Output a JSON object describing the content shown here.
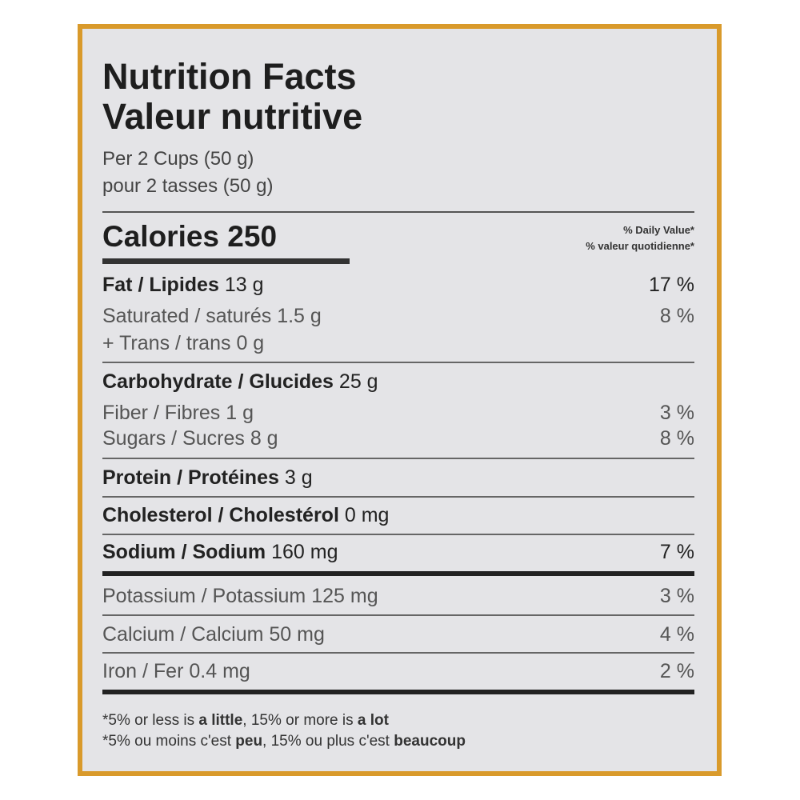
{
  "title": [
    "Nutrition Facts",
    "Valeur nutritive"
  ],
  "serving": [
    "Per 2 Cups (50 g)",
    "pour 2 tasses (50 g)"
  ],
  "calories": {
    "label": "Calories",
    "value": "250"
  },
  "daily_value_header": [
    "% Daily Value*",
    "% valeur quotidienne*"
  ],
  "rows": [
    {
      "name": "Fat / Lipides",
      "amount": "13 g",
      "dv": "17 %"
    },
    {
      "name": "Saturated / saturés",
      "amount": "1.5 g",
      "dv": "8 %"
    },
    {
      "name": "+ Trans / trans",
      "amount": "0 g"
    },
    {
      "name": "Carbohydrate / Glucides",
      "amount": "25 g"
    },
    {
      "name": "Fiber / Fibres",
      "amount": "1 g",
      "dv": "3 %"
    },
    {
      "name": "Sugars / Sucres",
      "amount": "8 g",
      "dv": "8 %"
    },
    {
      "name": "Protein / Protéines",
      "amount": "3 g"
    },
    {
      "name": "Cholesterol / Cholestérol",
      "amount": "0 mg"
    },
    {
      "name": "Sodium / Sodium",
      "amount": "160 mg",
      "dv": "7 %"
    },
    {
      "name": "Potassium / Potassium",
      "amount": "125 mg",
      "dv": "3 %"
    },
    {
      "name": "Calcium / Calcium",
      "amount": "50 mg",
      "dv": "4 %"
    },
    {
      "name": "Iron / Fer",
      "amount": "0.4 mg",
      "dv": "2 %"
    }
  ],
  "footnote": [
    [
      "*5% or less is ",
      "a little",
      ", 15% or more is ",
      "a lot"
    ],
    [
      "*5% ou moins c'est ",
      "peu",
      ", 15% ou plus c'est ",
      "beaucoup"
    ]
  ]
}
